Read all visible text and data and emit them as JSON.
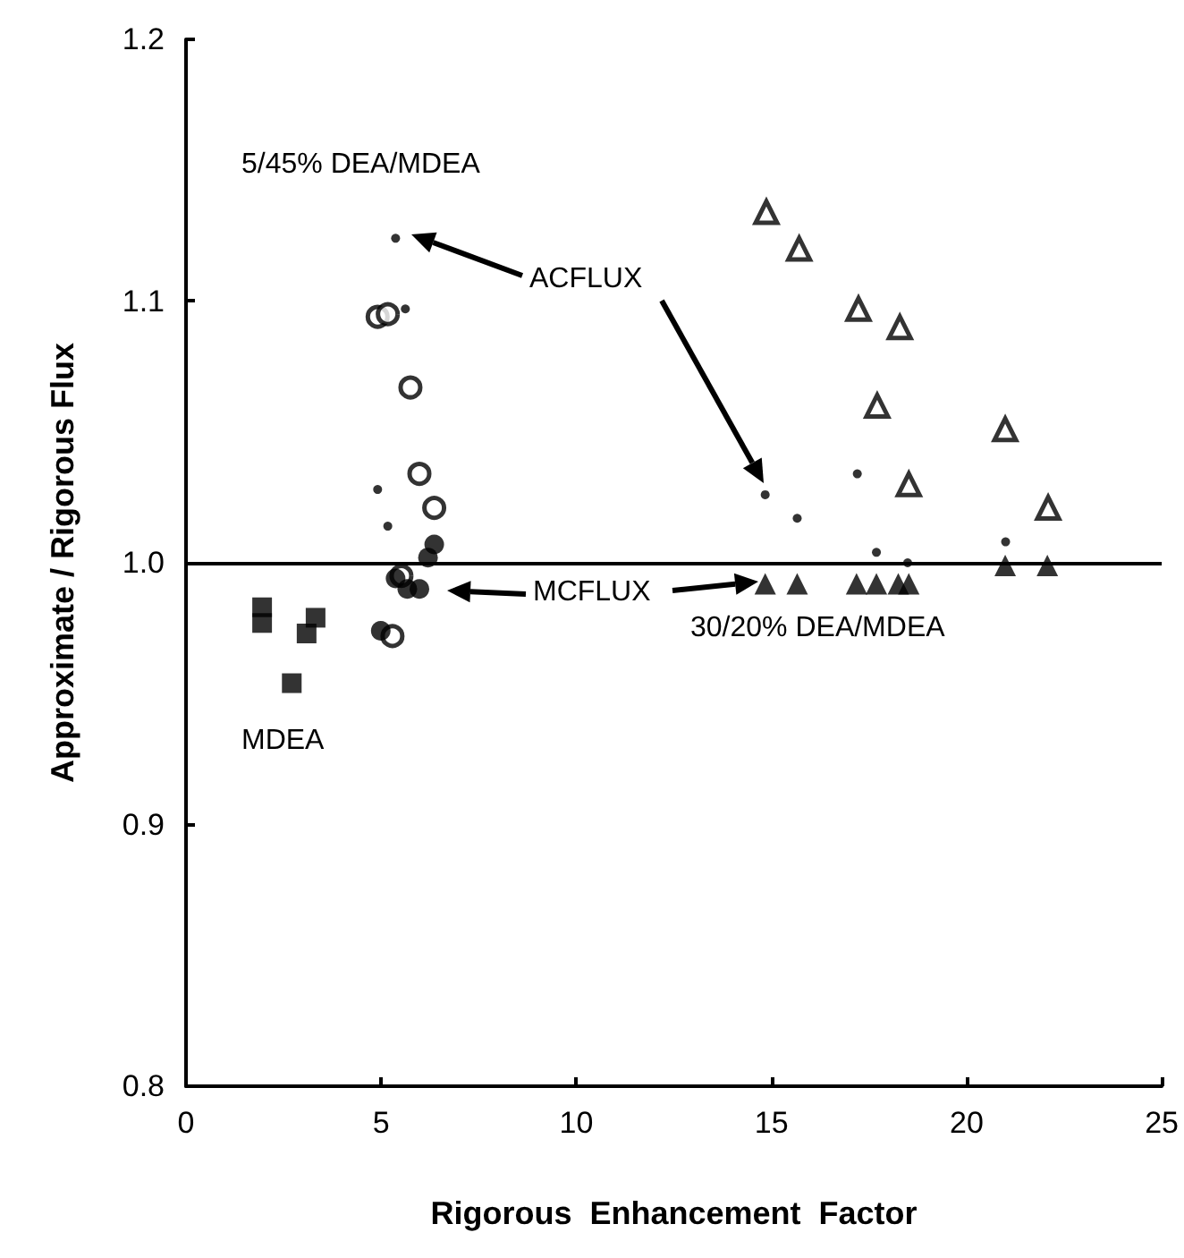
{
  "chart_data": {
    "type": "scatter",
    "xlabel": "Rigorous  Enhancement  Factor",
    "ylabel": "Approximate / Rigorous Flux",
    "annotations": [
      "5/45% DEA/MDEA",
      "ACFLUX",
      "MCFLUX",
      "30/20% DEA/MDEA",
      "MDEA"
    ],
    "xlim": [
      0,
      25
    ],
    "xticks": [
      0,
      5,
      10,
      15,
      20,
      25
    ],
    "ylim": [
      0.8,
      1.2
    ],
    "yticks": [
      0.8,
      0.9,
      {
        "value": 1.0,
        "label": "1.0"
      },
      1.1,
      1.2
    ],
    "ref_lines": [
      {
        "axis": "y",
        "value": 1.0,
        "color": "#000000",
        "line_style": "solid"
      }
    ],
    "series": [
      {
        "color": "#000000",
        "marker": "square",
        "x": [
          1.95,
          1.95,
          3.32,
          3.09,
          2.71
        ],
        "values": [
          0.983,
          0.977,
          0.979,
          0.973,
          0.954
        ]
      },
      {
        "color": "#000000",
        "marker": "circle",
        "x": [
          4.91,
          5.17,
          5.75,
          5.98,
          6.36,
          5.52,
          5.29
        ],
        "values": [
          1.094,
          1.095,
          1.067,
          1.034,
          1.021,
          0.995,
          0.972
        ]
      },
      {
        "color": "#000000",
        "marker": "circle",
        "x": [
          6.36,
          6.2,
          5.37,
          5.67,
          5.98,
          4.99
        ],
        "values": [
          1.007,
          1.002,
          0.994,
          0.99,
          0.99,
          0.974
        ]
      },
      {
        "color": "#000000",
        "marker": "circle",
        "x": [
          5.37,
          5.62,
          4.91,
          5.17,
          14.84,
          15.66,
          17.2,
          17.69,
          21.0,
          18.49
        ],
        "values": [
          1.124,
          1.097,
          1.028,
          1.014,
          1.026,
          1.017,
          1.034,
          1.004,
          1.008,
          1.0
        ]
      },
      {
        "color": "#000000",
        "marker": "triangle",
        "x": [
          14.87,
          15.71,
          17.23,
          18.29,
          17.71,
          18.52,
          20.99,
          22.09
        ],
        "values": [
          1.134,
          1.12,
          1.097,
          1.09,
          1.06,
          1.03,
          1.051,
          1.021
        ]
      },
      {
        "color": "#000000",
        "marker": "triangle",
        "x": [
          14.84,
          15.66,
          17.18,
          17.69,
          18.25,
          18.52,
          20.99,
          22.07
        ],
        "values": [
          0.992,
          0.992,
          0.992,
          0.992,
          0.992,
          0.992,
          0.999,
          0.999
        ]
      }
    ]
  }
}
